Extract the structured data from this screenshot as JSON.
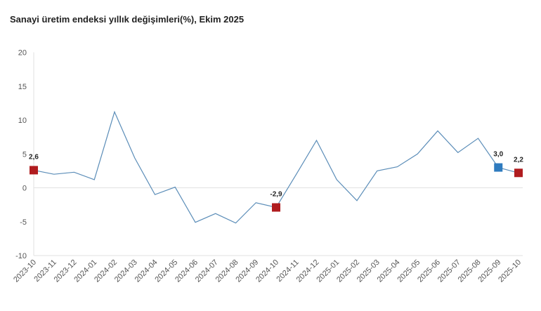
{
  "chart_data": {
    "type": "line",
    "title": "Sanayi üretim endeksi yıllık değişimleri(%), Ekim 2025",
    "xlabel": "",
    "ylabel": "",
    "ylim": [
      -10,
      20
    ],
    "yticks": [
      "20",
      "15",
      "10",
      "5",
      "0",
      "-5",
      "-10"
    ],
    "ytick_values": [
      20,
      15,
      10,
      5,
      0,
      -5,
      -10
    ],
    "categories": [
      "2023-10",
      "2023-11",
      "2023-12",
      "2024-01",
      "2024-02",
      "2024-03",
      "2024-04",
      "2024-05",
      "2024-06",
      "2024-07",
      "2024-08",
      "2024-09",
      "2024-10",
      "2024-11",
      "2024-12",
      "2025-01",
      "2025-02",
      "2025-03",
      "2025-04",
      "2025-05",
      "2025-06",
      "2025-07",
      "2025-08",
      "2025-09",
      "2025-10"
    ],
    "series": [
      {
        "name": "Yıllık değişim",
        "color": "#5b8db8",
        "values": [
          2.6,
          2.0,
          2.3,
          1.2,
          11.2,
          4.4,
          -1.0,
          0.1,
          -5.1,
          -3.8,
          -5.2,
          -2.2,
          -2.9,
          2.0,
          7.0,
          1.2,
          -1.9,
          2.5,
          3.1,
          5.0,
          8.4,
          5.2,
          7.3,
          3.0,
          2.2
        ]
      }
    ],
    "markers": [
      {
        "index": 0,
        "label": "2,6",
        "color": "#b01c1f"
      },
      {
        "index": 12,
        "label": "-2,9",
        "color": "#b01c1f"
      },
      {
        "index": 23,
        "label": "3,0",
        "color": "#2e7bbf"
      },
      {
        "index": 24,
        "label": "2,2",
        "color": "#b01c1f"
      }
    ],
    "grid": false
  }
}
